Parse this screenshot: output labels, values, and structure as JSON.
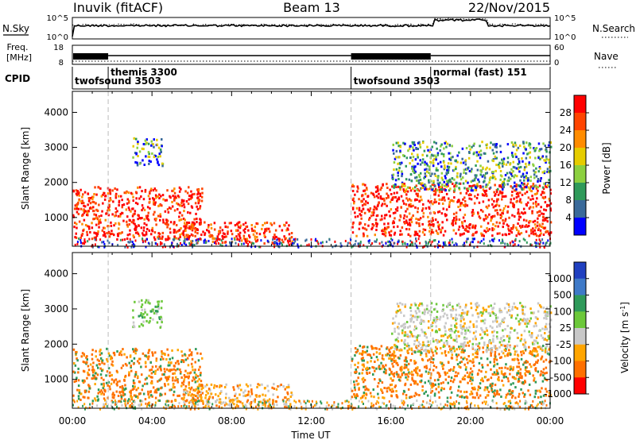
{
  "header": {
    "station": "Inuvik (fitACF)",
    "beam": "Beam 13",
    "date": "22/Nov/2015"
  },
  "nsky": {
    "label": "N.Sky",
    "ticks": [
      "10^5",
      "10^0"
    ],
    "right_label": "N.Search",
    "right_ticks": [
      "10^5",
      "10^0"
    ]
  },
  "freq": {
    "label_line1": "Freq.",
    "label_line2": "[MHz]",
    "ticks": [
      "18",
      "8"
    ],
    "right_label": "Nave",
    "right_ticks": [
      "60",
      "0"
    ]
  },
  "cpid": {
    "label": "CPID",
    "segments": [
      {
        "name": "twofsound 3503",
        "start_h": 0.0
      },
      {
        "name": "themis 3300",
        "start_h": 1.8
      },
      {
        "name": "twofsound 3503",
        "start_h": 14.0
      },
      {
        "name": "normal (fast) 151",
        "start_h": 18.0
      }
    ]
  },
  "x_axis": {
    "label": "Time UT",
    "ticks": [
      "00:00",
      "04:00",
      "08:00",
      "12:00",
      "16:00",
      "20:00",
      "00:00"
    ]
  },
  "chart_data": [
    {
      "type": "heatmap",
      "title": "",
      "xlabel": "",
      "ylabel": "Slant Range [km]",
      "xlim_hours": [
        0,
        24
      ],
      "ylim_km": [
        180,
        4600
      ],
      "y_ticks": [
        1000,
        2000,
        3000,
        4000
      ],
      "colorbar_label": "Power [dB]",
      "colorbar_ticks": [
        "28",
        "24",
        "20",
        "16",
        "12",
        "8",
        "4"
      ],
      "colors": [
        "#ff0000",
        "#ff4400",
        "#ff8c00",
        "#e6cc00",
        "#8cd040",
        "#2f9a5a",
        "#3a6a9a",
        "#0000ff"
      ],
      "echo_regions": [
        {
          "t0": 0.0,
          "t1": 6.5,
          "r0": 400,
          "r1": 1900,
          "level": 26
        },
        {
          "t0": 3.0,
          "t1": 4.5,
          "r0": 2500,
          "r1": 3300,
          "level": 12
        },
        {
          "t0": 5.5,
          "t1": 11.0,
          "r0": 250,
          "r1": 900,
          "level": 24
        },
        {
          "t0": 14.0,
          "t1": 24.0,
          "r0": 500,
          "r1": 2000,
          "level": 26
        },
        {
          "t0": 16.0,
          "t1": 24.0,
          "r0": 1800,
          "r1": 3200,
          "level": 10
        }
      ],
      "cpid_change_hours": [
        1.8,
        14.0,
        18.0
      ]
    },
    {
      "type": "heatmap",
      "title": "",
      "xlabel": "Time UT",
      "ylabel": "Slant Range [km]",
      "xlim_hours": [
        0,
        24
      ],
      "ylim_km": [
        180,
        4600
      ],
      "y_ticks": [
        1000,
        2000,
        3000,
        4000
      ],
      "colorbar_label": "Velocity [m s-1]",
      "colorbar_ticks": [
        "1000",
        "500",
        "100",
        "25",
        "-25",
        "-100",
        "-500",
        "-1000"
      ],
      "colors": [
        "#2040c0",
        "#3f7ac8",
        "#2f9a5a",
        "#6cc83a",
        "#c8c8c8",
        "#ffa500",
        "#ff7000",
        "#ff0000"
      ],
      "echo_regions": [
        {
          "t0": 0.0,
          "t1": 6.5,
          "r0": 400,
          "r1": 1900,
          "level": -300
        },
        {
          "t0": 3.0,
          "t1": 4.5,
          "r0": 2500,
          "r1": 3300,
          "level": 60
        },
        {
          "t0": 5.5,
          "t1": 11.0,
          "r0": 250,
          "r1": 900,
          "level": -150
        },
        {
          "t0": 14.0,
          "t1": 24.0,
          "r0": 500,
          "r1": 2000,
          "level": -250
        },
        {
          "t0": 16.0,
          "t1": 24.0,
          "r0": 1800,
          "r1": 3200,
          "level": 0
        }
      ],
      "cpid_change_hours": [
        1.8,
        14.0,
        18.0
      ]
    }
  ]
}
